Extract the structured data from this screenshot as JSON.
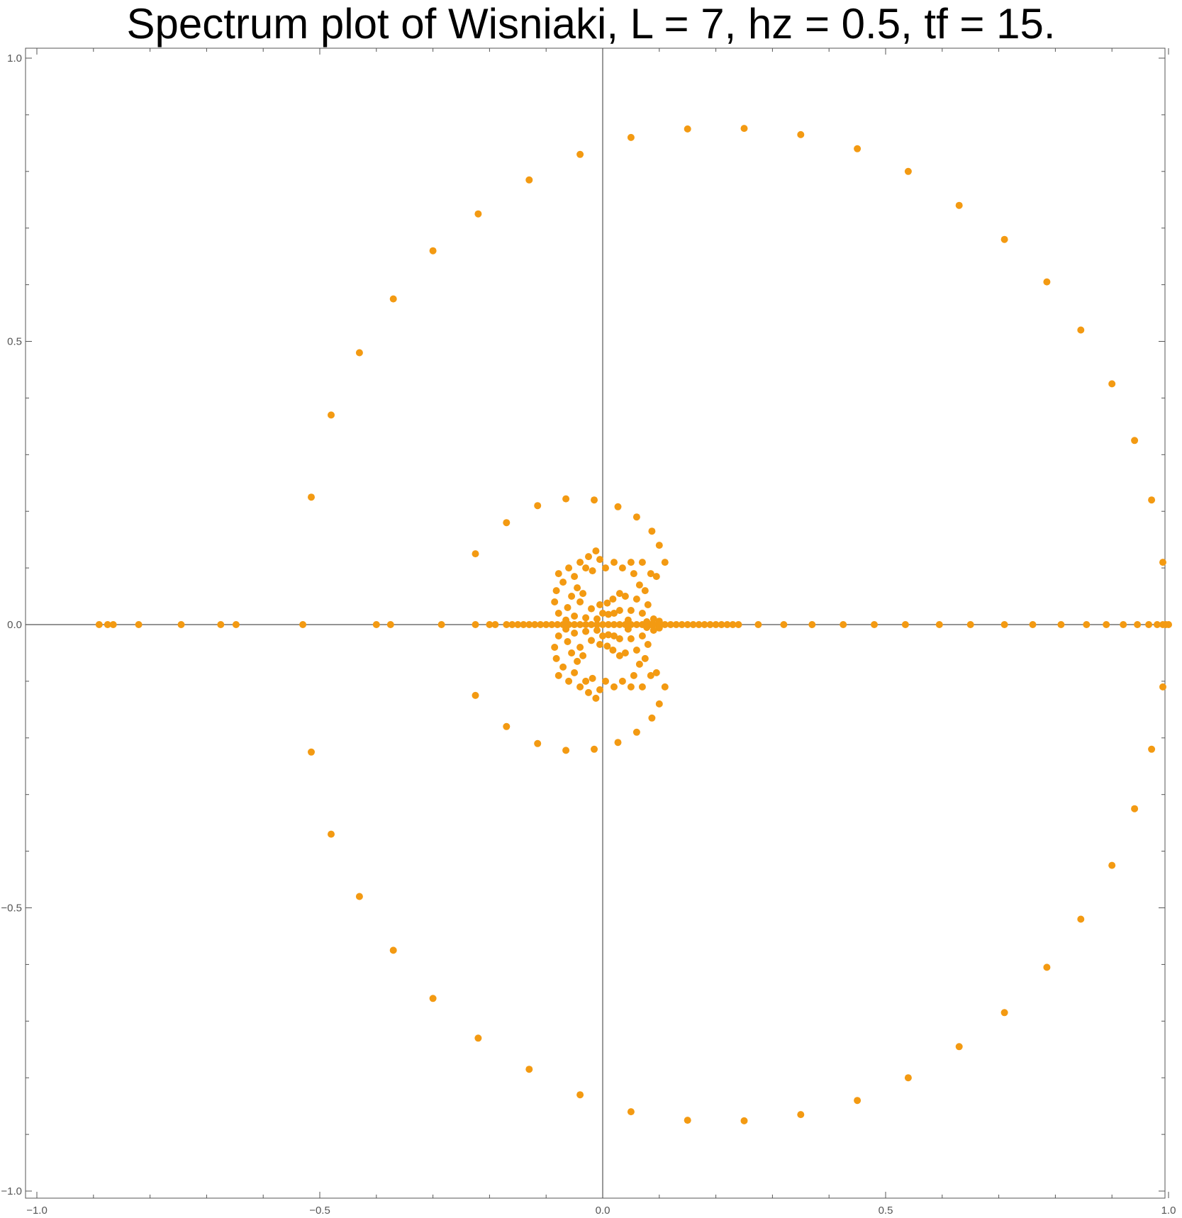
{
  "chart_data": {
    "type": "scatter",
    "title": "Spectrum plot of Wisniaki, L = 7, hz = 0.5, tf = 15.",
    "xlabel": "",
    "ylabel": "",
    "xlim": [
      -1.0,
      1.0
    ],
    "ylim": [
      -1.0,
      1.0
    ],
    "x_ticks": [
      "-1.0",
      "-0.5",
      "0.0",
      "0.5",
      "1.0"
    ],
    "y_ticks": [
      "1.0",
      "0.5",
      "0.0",
      "-0.5",
      "-1.0"
    ],
    "grid": false,
    "frame": true,
    "axes_through_origin": true,
    "marker_color": "#f39a12",
    "axis_color": "#555555",
    "series": [
      {
        "points": [
          [
            -0.04,
            0.83
          ],
          [
            0.05,
            0.86
          ],
          [
            0.15,
            0.875
          ],
          [
            0.25,
            0.876
          ],
          [
            0.35,
            0.865
          ],
          [
            0.45,
            0.84
          ],
          [
            0.54,
            0.8
          ],
          [
            0.63,
            0.74
          ],
          [
            0.71,
            0.68
          ],
          [
            0.785,
            0.605
          ],
          [
            0.845,
            0.52
          ],
          [
            0.9,
            0.425
          ],
          [
            0.94,
            0.325
          ],
          [
            0.97,
            0.22
          ],
          [
            0.99,
            0.11
          ],
          [
            -0.13,
            0.785
          ],
          [
            -0.22,
            0.725
          ],
          [
            -0.3,
            0.66
          ],
          [
            -0.37,
            0.575
          ],
          [
            -0.43,
            0.48
          ],
          [
            -0.48,
            0.37
          ],
          [
            -0.515,
            0.225
          ],
          [
            -0.04,
            -0.83
          ],
          [
            0.05,
            -0.86
          ],
          [
            0.15,
            -0.875
          ],
          [
            0.25,
            -0.876
          ],
          [
            0.35,
            -0.865
          ],
          [
            0.45,
            -0.84
          ],
          [
            0.54,
            -0.8
          ],
          [
            0.63,
            -0.745
          ],
          [
            0.71,
            -0.685
          ],
          [
            0.785,
            -0.605
          ],
          [
            0.845,
            -0.52
          ],
          [
            0.9,
            -0.425
          ],
          [
            0.94,
            -0.325
          ],
          [
            0.97,
            -0.22
          ],
          [
            0.99,
            -0.11
          ],
          [
            -0.13,
            -0.785
          ],
          [
            -0.22,
            -0.73
          ],
          [
            -0.3,
            -0.66
          ],
          [
            -0.37,
            -0.575
          ],
          [
            -0.43,
            -0.48
          ],
          [
            -0.48,
            -0.37
          ],
          [
            -0.515,
            -0.225
          ],
          [
            -0.89,
            0.0
          ],
          [
            -0.875,
            0.0
          ],
          [
            -0.865,
            0.0
          ],
          [
            -0.82,
            0.0
          ],
          [
            -0.745,
            0.0
          ],
          [
            -0.675,
            0.0
          ],
          [
            -0.648,
            0.0
          ],
          [
            -0.53,
            0.0
          ],
          [
            -0.4,
            0.0
          ],
          [
            -0.375,
            0.0
          ],
          [
            -0.285,
            0.0
          ],
          [
            -0.225,
            0.0
          ],
          [
            -0.2,
            0.0
          ],
          [
            -0.19,
            0.0
          ],
          [
            0.275,
            0.0
          ],
          [
            0.32,
            0.0
          ],
          [
            0.37,
            0.0
          ],
          [
            0.425,
            0.0
          ],
          [
            0.48,
            0.0
          ],
          [
            0.535,
            0.0
          ],
          [
            0.595,
            0.0
          ],
          [
            0.65,
            0.0
          ],
          [
            0.71,
            0.0
          ],
          [
            0.76,
            0.0
          ],
          [
            0.81,
            0.0
          ],
          [
            0.855,
            0.0
          ],
          [
            0.89,
            0.0
          ],
          [
            0.92,
            0.0
          ],
          [
            0.945,
            0.0
          ],
          [
            0.965,
            0.0
          ],
          [
            0.98,
            0.0
          ],
          [
            0.99,
            0.0
          ],
          [
            0.995,
            0.0
          ],
          [
            1.0,
            0.0
          ],
          [
            -0.17,
            0.0
          ],
          [
            -0.16,
            0.0
          ],
          [
            -0.15,
            0.0
          ],
          [
            -0.14,
            0.0
          ],
          [
            -0.13,
            0.0
          ],
          [
            -0.12,
            0.0
          ],
          [
            -0.11,
            0.0
          ],
          [
            -0.1,
            0.0
          ],
          [
            -0.09,
            0.0
          ],
          [
            -0.08,
            0.0
          ],
          [
            -0.07,
            0.0
          ],
          [
            -0.06,
            0.0
          ],
          [
            -0.05,
            0.0
          ],
          [
            -0.04,
            0.0
          ],
          [
            -0.03,
            0.0
          ],
          [
            -0.02,
            0.0
          ],
          [
            -0.01,
            0.0
          ],
          [
            0.0,
            0.0
          ],
          [
            0.01,
            0.0
          ],
          [
            0.02,
            0.0
          ],
          [
            0.03,
            0.0
          ],
          [
            0.04,
            0.0
          ],
          [
            0.05,
            0.0
          ],
          [
            0.06,
            0.0
          ],
          [
            0.07,
            0.0
          ],
          [
            0.08,
            0.0
          ],
          [
            0.085,
            0.0
          ],
          [
            0.09,
            0.0
          ],
          [
            0.1,
            0.0
          ],
          [
            0.11,
            0.0
          ],
          [
            0.12,
            0.0
          ],
          [
            0.13,
            0.0
          ],
          [
            0.14,
            0.0
          ],
          [
            0.15,
            0.0
          ],
          [
            0.16,
            0.0
          ],
          [
            0.17,
            0.0
          ],
          [
            0.18,
            0.0
          ],
          [
            0.19,
            0.0
          ],
          [
            0.2,
            0.0
          ],
          [
            0.21,
            0.0
          ],
          [
            0.22,
            0.0
          ],
          [
            0.23,
            0.0
          ],
          [
            0.24,
            0.0
          ],
          [
            -0.225,
            0.125
          ],
          [
            -0.17,
            0.18
          ],
          [
            -0.115,
            0.21
          ],
          [
            -0.065,
            0.222
          ],
          [
            -0.015,
            0.22
          ],
          [
            0.027,
            0.208
          ],
          [
            0.06,
            0.19
          ],
          [
            0.087,
            0.165
          ],
          [
            0.1,
            0.14
          ],
          [
            0.11,
            0.11
          ],
          [
            -0.225,
            -0.125
          ],
          [
            -0.17,
            -0.18
          ],
          [
            -0.115,
            -0.21
          ],
          [
            -0.065,
            -0.222
          ],
          [
            -0.015,
            -0.22
          ],
          [
            0.027,
            -0.208
          ],
          [
            0.06,
            -0.19
          ],
          [
            0.087,
            -0.165
          ],
          [
            0.1,
            -0.14
          ],
          [
            0.11,
            -0.11
          ],
          [
            -0.078,
            0.09
          ],
          [
            -0.07,
            0.075
          ],
          [
            -0.082,
            0.06
          ],
          [
            -0.085,
            0.04
          ],
          [
            -0.078,
            0.02
          ],
          [
            -0.06,
            0.1
          ],
          [
            -0.05,
            0.085
          ],
          [
            -0.045,
            0.065
          ],
          [
            -0.055,
            0.05
          ],
          [
            -0.062,
            0.03
          ],
          [
            -0.04,
            0.11
          ],
          [
            -0.025,
            0.12
          ],
          [
            -0.012,
            0.13
          ],
          [
            -0.005,
            0.115
          ],
          [
            0.005,
            0.1
          ],
          [
            -0.03,
            0.1
          ],
          [
            -0.018,
            0.095
          ],
          [
            0.02,
            0.11
          ],
          [
            0.035,
            0.1
          ],
          [
            0.05,
            0.11
          ],
          [
            0.07,
            0.11
          ],
          [
            0.085,
            0.09
          ],
          [
            0.095,
            0.085
          ],
          [
            0.055,
            0.09
          ],
          [
            0.065,
            0.07
          ],
          [
            0.075,
            0.06
          ],
          [
            0.08,
            0.035
          ],
          [
            0.06,
            0.045
          ],
          [
            0.07,
            0.02
          ],
          [
            0.05,
            0.025
          ],
          [
            0.04,
            0.05
          ],
          [
            0.03,
            0.055
          ],
          [
            0.018,
            0.045
          ],
          [
            0.008,
            0.038
          ],
          [
            -0.005,
            0.035
          ],
          [
            -0.02,
            0.028
          ],
          [
            -0.03,
            0.012
          ],
          [
            -0.04,
            0.04
          ],
          [
            -0.035,
            0.055
          ],
          [
            0.0,
            0.02
          ],
          [
            0.01,
            0.018
          ],
          [
            0.02,
            0.02
          ],
          [
            0.03,
            0.025
          ],
          [
            -0.05,
            0.015
          ],
          [
            -0.065,
            0.008
          ],
          [
            0.09,
            0.01
          ],
          [
            0.1,
            0.006
          ],
          [
            0.078,
            0.005
          ],
          [
            -0.01,
            0.01
          ],
          [
            0.045,
            0.008
          ],
          [
            -0.078,
            -0.09
          ],
          [
            -0.07,
            -0.075
          ],
          [
            -0.082,
            -0.06
          ],
          [
            -0.085,
            -0.04
          ],
          [
            -0.078,
            -0.02
          ],
          [
            -0.06,
            -0.1
          ],
          [
            -0.05,
            -0.085
          ],
          [
            -0.045,
            -0.065
          ],
          [
            -0.055,
            -0.05
          ],
          [
            -0.062,
            -0.03
          ],
          [
            -0.04,
            -0.11
          ],
          [
            -0.025,
            -0.12
          ],
          [
            -0.012,
            -0.13
          ],
          [
            -0.005,
            -0.115
          ],
          [
            0.005,
            -0.1
          ],
          [
            -0.03,
            -0.1
          ],
          [
            -0.018,
            -0.095
          ],
          [
            0.02,
            -0.11
          ],
          [
            0.035,
            -0.1
          ],
          [
            0.05,
            -0.11
          ],
          [
            0.07,
            -0.11
          ],
          [
            0.085,
            -0.09
          ],
          [
            0.095,
            -0.085
          ],
          [
            0.055,
            -0.09
          ],
          [
            0.065,
            -0.07
          ],
          [
            0.075,
            -0.06
          ],
          [
            0.08,
            -0.035
          ],
          [
            0.06,
            -0.045
          ],
          [
            0.07,
            -0.02
          ],
          [
            0.05,
            -0.025
          ],
          [
            0.04,
            -0.05
          ],
          [
            0.03,
            -0.055
          ],
          [
            0.018,
            -0.045
          ],
          [
            0.008,
            -0.038
          ],
          [
            -0.005,
            -0.035
          ],
          [
            -0.02,
            -0.028
          ],
          [
            -0.03,
            -0.012
          ],
          [
            -0.04,
            -0.04
          ],
          [
            -0.035,
            -0.055
          ],
          [
            0.0,
            -0.02
          ],
          [
            0.01,
            -0.018
          ],
          [
            0.02,
            -0.02
          ],
          [
            0.03,
            -0.025
          ],
          [
            -0.05,
            -0.015
          ],
          [
            -0.065,
            -0.008
          ],
          [
            0.09,
            -0.01
          ],
          [
            0.1,
            -0.006
          ],
          [
            0.078,
            -0.005
          ],
          [
            -0.01,
            -0.01
          ],
          [
            0.045,
            -0.008
          ]
        ]
      }
    ]
  }
}
